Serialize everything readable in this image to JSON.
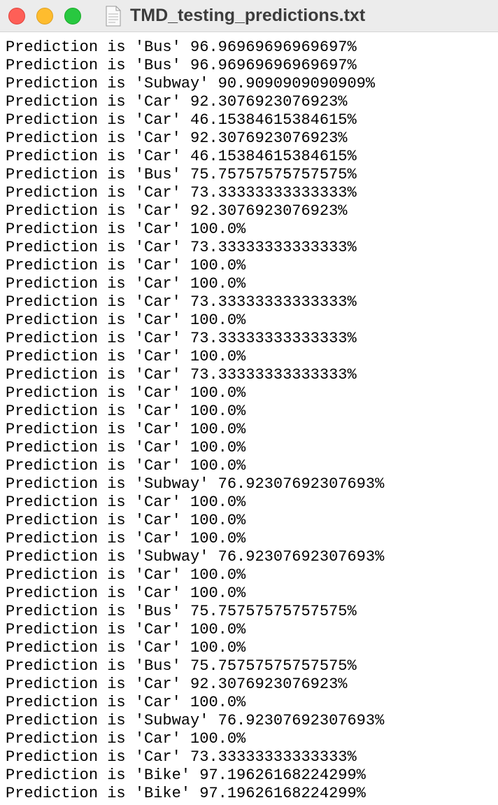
{
  "window": {
    "title": "TMD_testing_predictions.txt"
  },
  "lines": [
    "Prediction is 'Bus' 96.96969696969697%",
    "Prediction is 'Bus' 96.96969696969697%",
    "Prediction is 'Subway' 90.9090909090909%",
    "Prediction is 'Car' 92.3076923076923%",
    "Prediction is 'Car' 46.15384615384615%",
    "Prediction is 'Car' 92.3076923076923%",
    "Prediction is 'Car' 46.15384615384615%",
    "Prediction is 'Bus' 75.75757575757575%",
    "Prediction is 'Car' 73.33333333333333%",
    "Prediction is 'Car' 92.3076923076923%",
    "Prediction is 'Car' 100.0%",
    "Prediction is 'Car' 73.33333333333333%",
    "Prediction is 'Car' 100.0%",
    "Prediction is 'Car' 100.0%",
    "Prediction is 'Car' 73.33333333333333%",
    "Prediction is 'Car' 100.0%",
    "Prediction is 'Car' 73.33333333333333%",
    "Prediction is 'Car' 100.0%",
    "Prediction is 'Car' 73.33333333333333%",
    "Prediction is 'Car' 100.0%",
    "Prediction is 'Car' 100.0%",
    "Prediction is 'Car' 100.0%",
    "Prediction is 'Car' 100.0%",
    "Prediction is 'Car' 100.0%",
    "Prediction is 'Subway' 76.92307692307693%",
    "Prediction is 'Car' 100.0%",
    "Prediction is 'Car' 100.0%",
    "Prediction is 'Car' 100.0%",
    "Prediction is 'Subway' 76.92307692307693%",
    "Prediction is 'Car' 100.0%",
    "Prediction is 'Car' 100.0%",
    "Prediction is 'Bus' 75.75757575757575%",
    "Prediction is 'Car' 100.0%",
    "Prediction is 'Car' 100.0%",
    "Prediction is 'Bus' 75.75757575757575%",
    "Prediction is 'Car' 92.3076923076923%",
    "Prediction is 'Car' 100.0%",
    "Prediction is 'Subway' 76.92307692307693%",
    "Prediction is 'Car' 100.0%",
    "Prediction is 'Car' 73.33333333333333%",
    "Prediction is 'Bike' 97.19626168224299%",
    "Prediction is 'Bike' 97.19626168224299%"
  ]
}
